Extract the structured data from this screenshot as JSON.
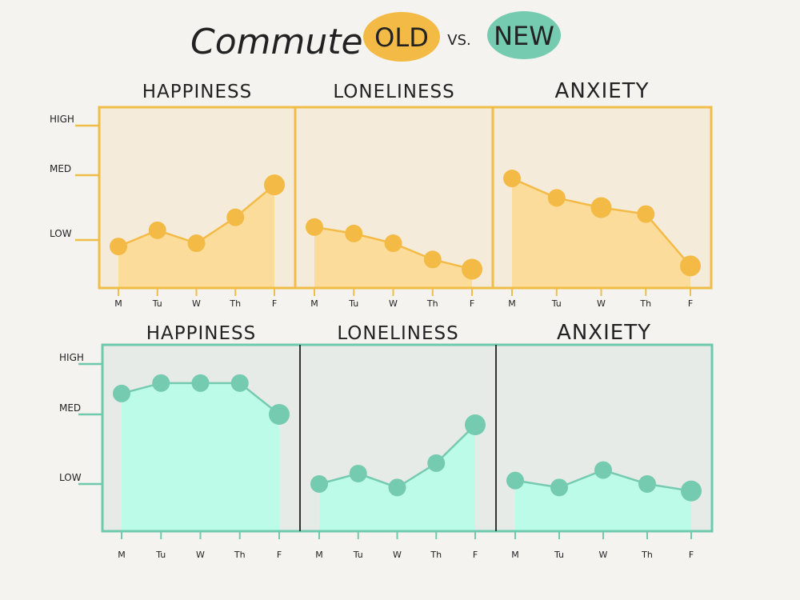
{
  "header": {
    "title": "Commute :",
    "old_label": "OLD",
    "vs_label": "VS.",
    "new_label": "NEW"
  },
  "colors": {
    "old_frame": "#f0bd48",
    "old_bg": "#f5ebda",
    "old_fill": "#fcdc9a",
    "old_dot": "#f3bb46",
    "new_frame": "#6ec9ad",
    "new_bg": "#e6ebe7",
    "new_fill": "#bdfbe9",
    "new_dot": "#75cbb0",
    "title_ink": "#222222",
    "axis_ink": "#222222",
    "page_bg": "#f4f3ef"
  },
  "chart_data": [
    {
      "type": "line",
      "group": "old",
      "title": "HAPPINESS",
      "categories": [
        "M",
        "Tu",
        "W",
        "Th",
        "F"
      ],
      "y_levels": [
        "LOW",
        "MED",
        "HIGH"
      ],
      "ylim": [
        0,
        3
      ],
      "values": [
        0.9,
        1.15,
        0.95,
        1.35,
        1.85
      ]
    },
    {
      "type": "line",
      "group": "old",
      "title": "LONELINESS",
      "categories": [
        "M",
        "Tu",
        "W",
        "Th",
        "F"
      ],
      "y_levels": [
        "LOW",
        "MED",
        "HIGH"
      ],
      "ylim": [
        0,
        3
      ],
      "values": [
        1.2,
        1.1,
        0.95,
        0.7,
        0.55
      ]
    },
    {
      "type": "line",
      "group": "old",
      "title": "ANXIETY",
      "categories": [
        "M",
        "Tu",
        "W",
        "Th",
        "F"
      ],
      "y_levels": [
        "LOW",
        "MED",
        "HIGH"
      ],
      "ylim": [
        0,
        3
      ],
      "values": [
        1.95,
        1.65,
        1.5,
        1.4,
        0.6
      ]
    },
    {
      "type": "line",
      "group": "new",
      "title": "HAPPINESS",
      "categories": [
        "M",
        "Tu",
        "W",
        "Th",
        "F"
      ],
      "y_levels": [
        "LOW",
        "MED",
        "HIGH"
      ],
      "ylim": [
        0,
        3
      ],
      "values": [
        2.3,
        2.45,
        2.45,
        2.45,
        2.0
      ]
    },
    {
      "type": "line",
      "group": "new",
      "title": "LONELINESS",
      "categories": [
        "M",
        "Tu",
        "W",
        "Th",
        "F"
      ],
      "y_levels": [
        "LOW",
        "MED",
        "HIGH"
      ],
      "ylim": [
        0,
        3
      ],
      "values": [
        1.0,
        1.15,
        0.95,
        1.3,
        1.85
      ]
    },
    {
      "type": "line",
      "group": "new",
      "title": "ANXIETY",
      "categories": [
        "M",
        "Tu",
        "W",
        "Th",
        "F"
      ],
      "y_levels": [
        "LOW",
        "MED",
        "HIGH"
      ],
      "ylim": [
        0,
        3
      ],
      "values": [
        1.05,
        0.95,
        1.2,
        1.0,
        0.9
      ]
    }
  ]
}
